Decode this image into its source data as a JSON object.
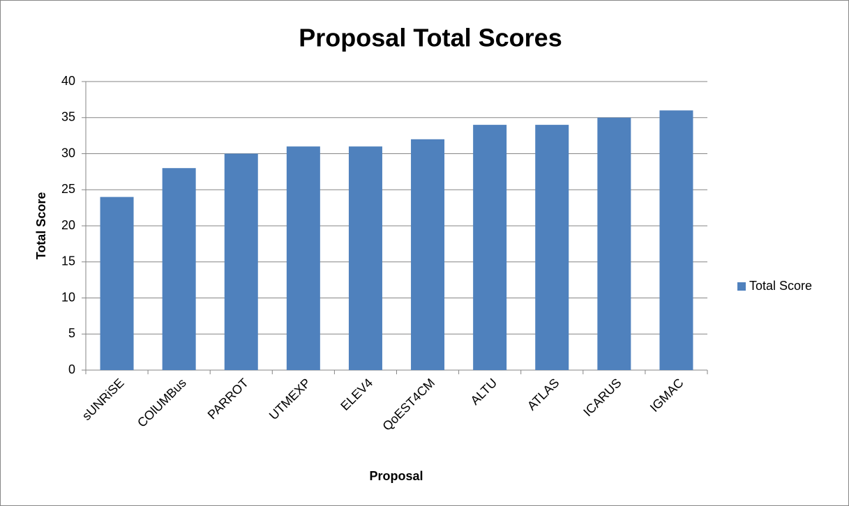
{
  "chart_data": {
    "type": "bar",
    "title": "Proposal Total Scores",
    "x_label": "Proposal",
    "y_label": "Total Score",
    "categories": [
      "sUNRiSE",
      "COlUMBus",
      "PARROT",
      "UTMEXP",
      "ELEV4",
      "QoEST4CM",
      "ALTU",
      "ATLAS",
      "ICARUS",
      "IGMAC"
    ],
    "series": [
      {
        "name": "Total Score",
        "color": "#4f81bd",
        "values": [
          24,
          28,
          30,
          31,
          31,
          32,
          34,
          34,
          35,
          36
        ]
      }
    ],
    "ylim": [
      0,
      40
    ],
    "yticks": [
      0,
      5,
      10,
      15,
      20,
      25,
      30,
      35,
      40
    ],
    "grid": true,
    "legend": "right"
  }
}
